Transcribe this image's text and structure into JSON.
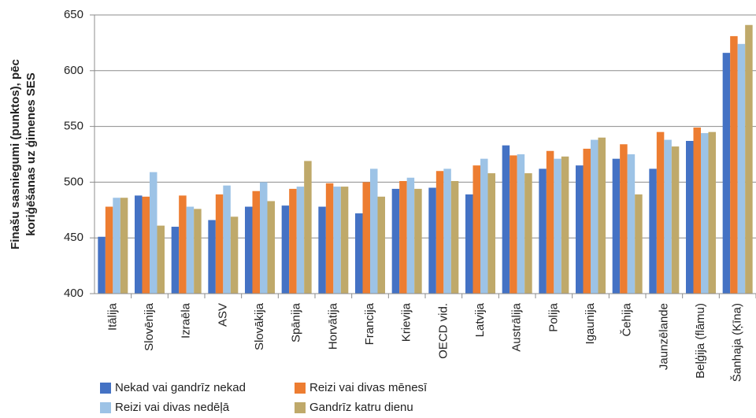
{
  "chart_data": {
    "type": "bar",
    "ylabel": [
      "Finašu sasniegumi (punktos), pēc",
      "koriģēšanas uz ģimenes SES"
    ],
    "categories": [
      "Itālija",
      "Slovēnija",
      "Izraēla",
      "ASV",
      "Slovākija",
      "Spānija",
      "Horvātija",
      "Francija",
      "Krievija",
      "OECD vid.",
      "Latvija",
      "Austrālija",
      "Polija",
      "Igaunija",
      "Čehija",
      "Jaunzēlande",
      "Beļģija (flāmu)",
      "Šanhaja (Ķīna)"
    ],
    "series": [
      {
        "name": "Nekad vai gandrīz nekad",
        "color": "#4472c4",
        "values": [
          451,
          488,
          460,
          466,
          478,
          479,
          478,
          472,
          494,
          495,
          489,
          533,
          512,
          515,
          521,
          512,
          537,
          616
        ]
      },
      {
        "name": "Reizi vai divas mēnesī",
        "color": "#ed7d31",
        "values": [
          478,
          487,
          488,
          489,
          492,
          494,
          499,
          500,
          501,
          510,
          515,
          524,
          528,
          530,
          534,
          545,
          549,
          631
        ]
      },
      {
        "name": "Reizi vai divas nedēļā",
        "color": "#9dc3e6",
        "values": [
          486,
          509,
          478,
          497,
          500,
          496,
          496,
          512,
          504,
          512,
          521,
          525,
          521,
          538,
          525,
          538,
          544,
          624
        ]
      },
      {
        "name": "Gandrīz katru dienu",
        "color": "#bfa96a",
        "values": [
          486,
          461,
          476,
          469,
          483,
          519,
          496,
          487,
          494,
          501,
          508,
          508,
          523,
          540,
          489,
          532,
          545,
          641
        ]
      }
    ],
    "ylim": [
      400,
      650
    ],
    "yticks": [
      400,
      450,
      500,
      550,
      600,
      650
    ],
    "grid": true
  }
}
